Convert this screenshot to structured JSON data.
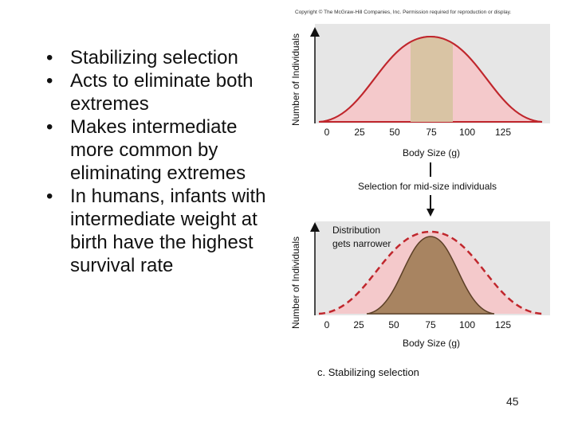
{
  "copyright": "Copyright © The McGraw-Hill Companies, Inc. Permission required for reproduction or display.",
  "bullets": [
    "Stabilizing selection",
    "Acts to eliminate both extremes",
    "Makes intermediate more common by eliminating extremes",
    "In humans, infants with intermediate weight at birth have the highest survival rate"
  ],
  "figure": {
    "top_panel": {
      "ylabel": "Number of Individuals",
      "xlabel": "Body Size (g)",
      "ticks": [
        "0",
        "25",
        "50",
        "75",
        "100",
        "125"
      ]
    },
    "arrow_label": "Selection for mid-size individuals",
    "bottom_panel": {
      "ylabel": "Number of Individuals",
      "xlabel": "Body Size (g)",
      "ticks": [
        "0",
        "25",
        "50",
        "75",
        "100",
        "125"
      ],
      "annotation_line1": "Distribution",
      "annotation_line2": "gets narrower"
    },
    "caption": "c. Stabilizing selection",
    "colors": {
      "panel_bg": "#e6e6e6",
      "wide_fill": "#f4c9cb",
      "wide_stroke": "#c0272d",
      "selected_band": "#d9c4a4",
      "narrow_fill": "#a88461",
      "narrow_stroke": "#5c4027"
    }
  },
  "page_number": "45"
}
